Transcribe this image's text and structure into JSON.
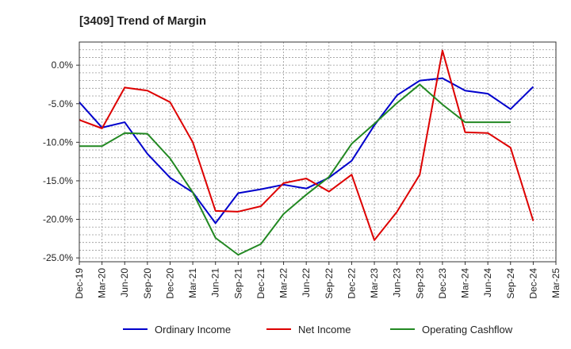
{
  "chart_data": {
    "type": "line",
    "title": "[3409]  Trend of Margin",
    "xlabel": "",
    "ylabel": "",
    "ylim": [
      -25.5,
      3
    ],
    "yticks": [
      0,
      -5,
      -10,
      -15,
      -20,
      -25
    ],
    "y_tick_labels": [
      "0.0%",
      "-5.0%",
      "-10.0%",
      "-15.0%",
      "-20.0%",
      "-25.0%"
    ],
    "categories": [
      "Dec-19",
      "Mar-20",
      "Jun-20",
      "Sep-20",
      "Dec-20",
      "Mar-21",
      "Jun-21",
      "Sep-21",
      "Dec-21",
      "Mar-22",
      "Jun-22",
      "Sep-22",
      "Dec-22",
      "Mar-23",
      "Jun-23",
      "Sep-23",
      "Dec-23",
      "Mar-24",
      "Jun-24",
      "Sep-24",
      "Dec-24",
      "Mar-25"
    ],
    "grid": true,
    "legend_position": "bottom",
    "series": [
      {
        "name": "Ordinary Income",
        "color": "#0000cc",
        "values": [
          -4.8,
          -8.1,
          -7.4,
          -11.5,
          -14.6,
          -16.5,
          -20.5,
          -16.6,
          -16.1,
          -15.5,
          -16.0,
          -14.6,
          -12.4,
          -7.8,
          -3.9,
          -2.0,
          -1.7,
          -3.3,
          -3.7,
          -5.7,
          -2.8,
          null
        ]
      },
      {
        "name": "Net Income",
        "color": "#dd0000",
        "values": [
          -7.1,
          -8.2,
          -2.9,
          -3.3,
          -4.8,
          -10.0,
          -18.9,
          -19.0,
          -18.3,
          -15.3,
          -14.7,
          -16.4,
          -14.2,
          -22.7,
          -19.0,
          -14.2,
          1.9,
          -8.7,
          -8.8,
          -10.7,
          -20.2,
          null
        ]
      },
      {
        "name": "Operating Cashflow",
        "color": "#228822",
        "values": [
          -10.5,
          -10.5,
          -8.8,
          -8.9,
          -12.1,
          -16.5,
          -22.4,
          -24.6,
          -23.2,
          -19.3,
          -16.8,
          -14.5,
          -10.2,
          -7.6,
          -4.9,
          -2.5,
          -5.1,
          -7.4,
          -7.4,
          -7.4,
          null,
          null
        ]
      }
    ]
  }
}
